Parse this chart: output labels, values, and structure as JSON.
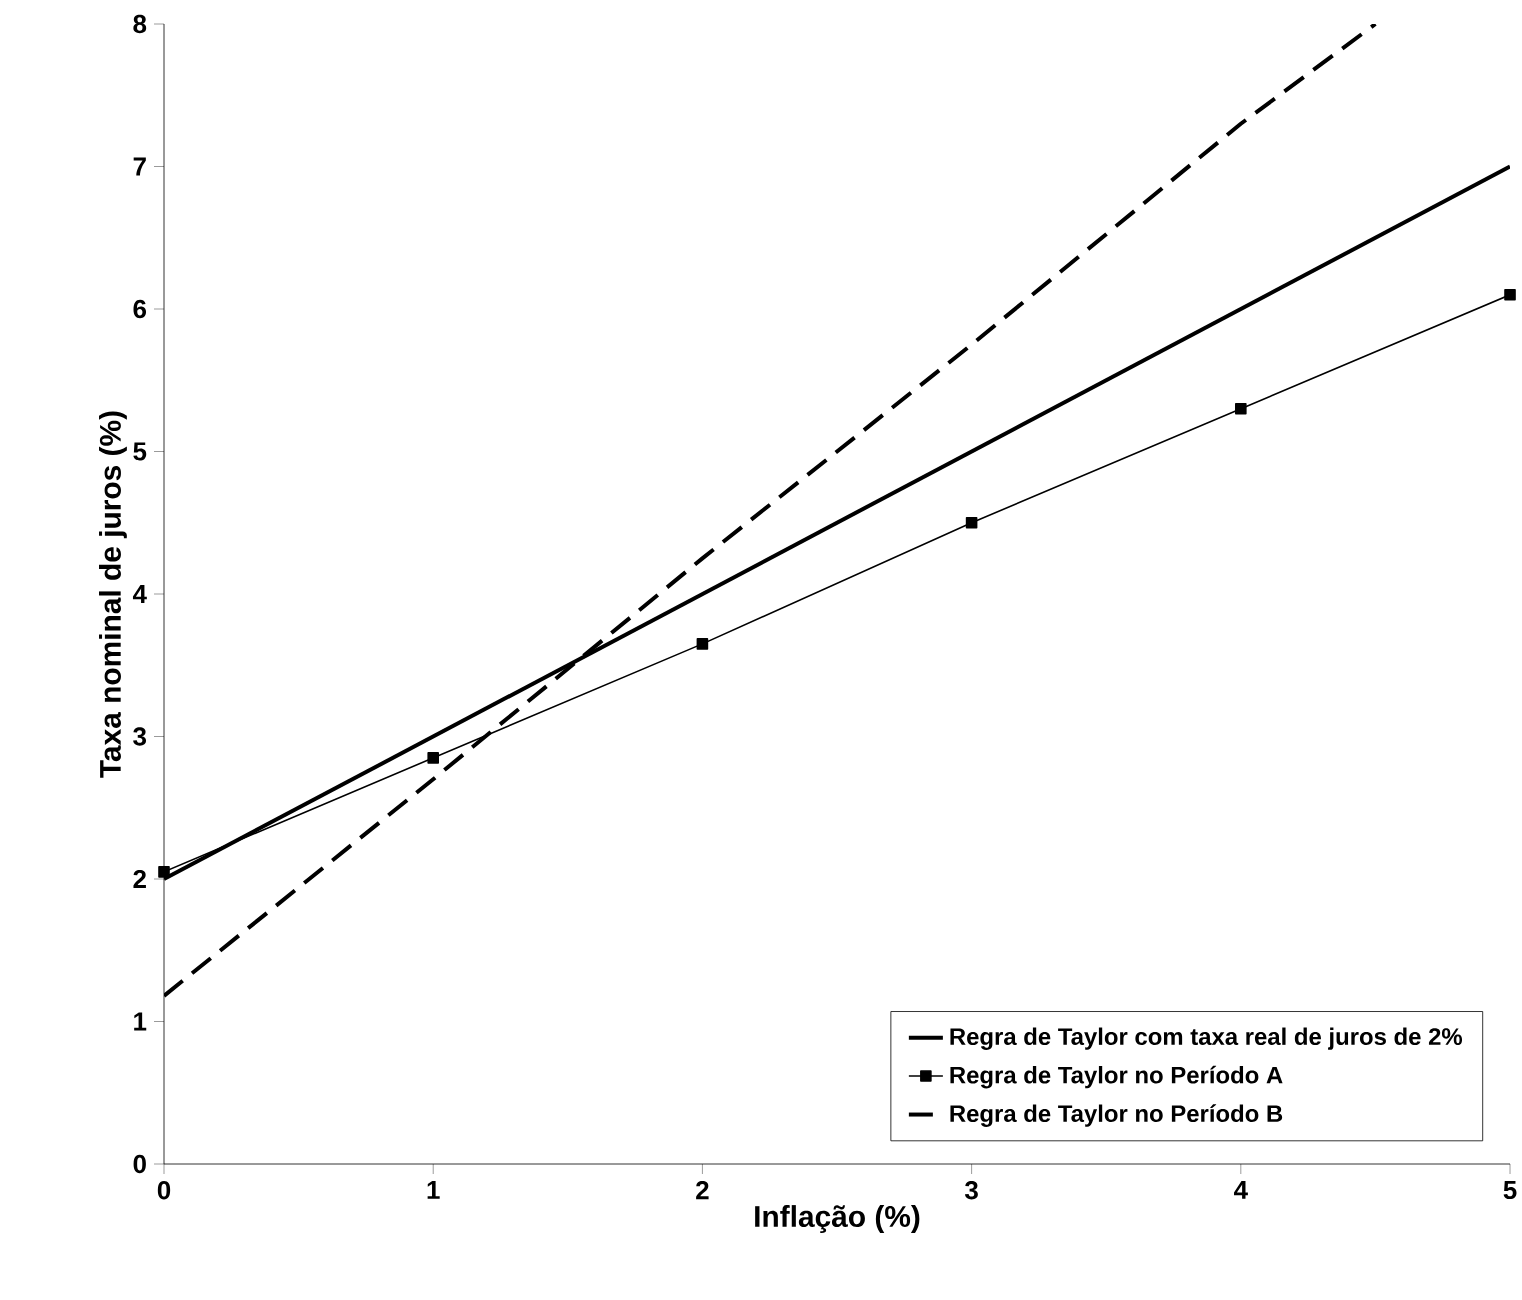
{
  "chart_data": {
    "type": "line",
    "xlabel": "Inflação (%)",
    "ylabel": "Taxa nominal de juros (%)",
    "xlim": [
      0,
      5
    ],
    "xticks": [
      0,
      1,
      2,
      3,
      4,
      5
    ],
    "ylim": [
      0,
      8
    ],
    "yticks": [
      0,
      1,
      2,
      3,
      4,
      5,
      6,
      7,
      8
    ],
    "grid": false,
    "legend": "bottom right",
    "series": [
      {
        "name": "Regra de Taylor com taxa real de juros de 2%",
        "color": "#000000",
        "x": [
          0,
          5
        ],
        "values": [
          2,
          7
        ],
        "marker": "none",
        "line_style": "solid"
      },
      {
        "name": "Regra de Taylor no Período A",
        "color": "#000000",
        "x": [
          0,
          1,
          2,
          3,
          4,
          5
        ],
        "values": [
          2.05,
          2.85,
          3.65,
          4.5,
          5.3,
          6.1
        ],
        "marker": "square",
        "line_style": "solid"
      },
      {
        "name": "Regra de Taylor no Período B",
        "color": "#000000",
        "x": [
          0,
          1,
          2,
          3,
          4,
          4.5
        ],
        "values": [
          1.18,
          2.7,
          4.25,
          5.75,
          7.3,
          8.0
        ],
        "marker": "none",
        "line_style": "dashed"
      }
    ]
  }
}
